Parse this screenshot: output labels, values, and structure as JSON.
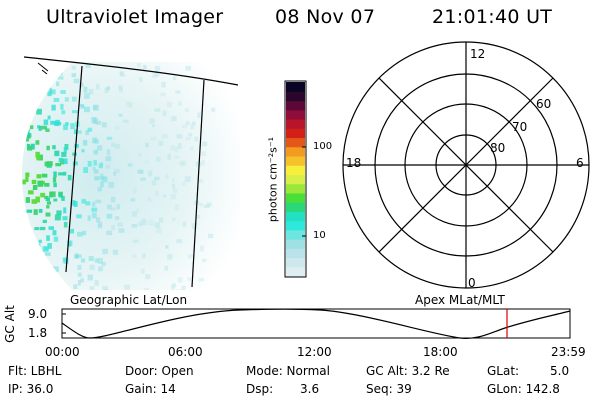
{
  "header": {
    "title": "Ultraviolet Imager",
    "date": "08 Nov 07",
    "time": "21:01:40 UT"
  },
  "colorbar": {
    "label": "photon cm⁻²s⁻¹",
    "ticks": [
      "100",
      "10"
    ],
    "colors": [
      "#dfeef2",
      "#cfe8ee",
      "#b9e3ea",
      "#9fe0e4",
      "#6ee6df",
      "#2ee8dc",
      "#22e1c2",
      "#2ad87a",
      "#4ade39",
      "#9be83a",
      "#d8ef4a",
      "#f6ef3c",
      "#f6c22c",
      "#f39a21",
      "#e3571a",
      "#d22016",
      "#b8142a",
      "#8e0d39",
      "#5b0837",
      "#2a062d",
      "#0a0424"
    ]
  },
  "geographic_panel": {
    "label": "Geographic Lat/Lon"
  },
  "apex_panel": {
    "label": "Apex MLat/MLT",
    "mlt_labels": {
      "top": "12",
      "bottom": "0",
      "left": "18",
      "right": "6"
    },
    "lat_labels": [
      "60",
      "70",
      "80"
    ]
  },
  "altitude_plot": {
    "ylabel": "GC Alt",
    "yticks": [
      "9.0",
      "1.8"
    ],
    "xticks": [
      "00:00",
      "06:00",
      "12:00",
      "18:00",
      "23:59"
    ],
    "marker_color": "#dd0000"
  },
  "info": {
    "flt": "Flt: LBHL",
    "ip": "IP: 36.0",
    "door": "Door: Open",
    "gain": "Gain: 14",
    "mode": "Mode: Normal",
    "dsp_label": "Dsp:",
    "dsp_value": "3.6",
    "gc_alt": "GC Alt: 3.2 Re",
    "seq": "Seq: 39",
    "glat_label": "GLat:",
    "glat_value": "5.0",
    "glon": "GLon: 142.8"
  }
}
